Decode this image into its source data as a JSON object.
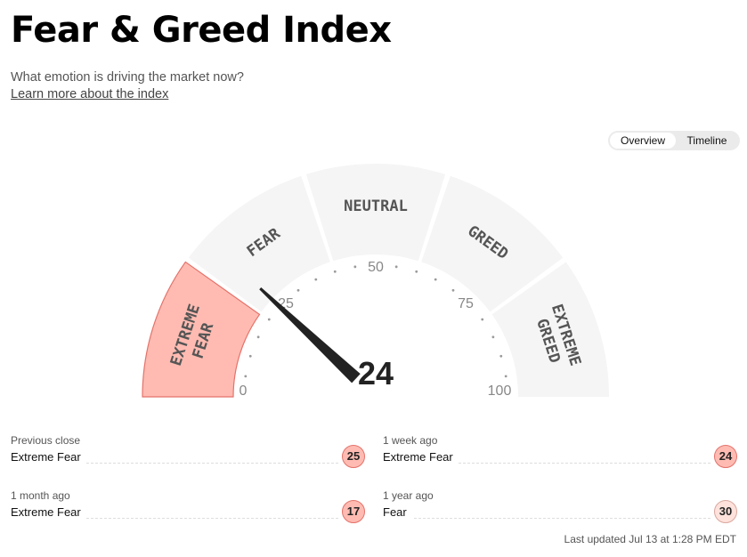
{
  "header": {
    "title": "Fear & Greed Index",
    "subtitle": "What emotion is driving the market now?",
    "learn_link": "Learn more about the index"
  },
  "view_toggle": {
    "options": [
      "Overview",
      "Timeline"
    ],
    "selected": "Overview"
  },
  "gauge": {
    "value": 24,
    "value_label": "24",
    "scale_min": 0,
    "scale_max": 100,
    "ticks": [
      "0",
      "25",
      "50",
      "75",
      "100"
    ],
    "segments": [
      {
        "lines": [
          "EXTREME",
          "FEAR"
        ],
        "active": true
      },
      {
        "lines": [
          "FEAR"
        ],
        "active": false
      },
      {
        "lines": [
          "NEUTRAL"
        ],
        "active": false
      },
      {
        "lines": [
          "GREED"
        ],
        "active": false
      },
      {
        "lines": [
          "EXTREME",
          "GREED"
        ],
        "active": false
      }
    ],
    "colors": {
      "active_fill": "#ffbbb2",
      "active_stroke": "#e4726a",
      "inactive_fill": "#f5f5f5",
      "needle": "#222222"
    }
  },
  "history": [
    {
      "label": "Previous close",
      "value": "Extreme Fear",
      "score": "25"
    },
    {
      "label": "1 week ago",
      "value": "Extreme Fear",
      "score": "24"
    },
    {
      "label": "1 month ago",
      "value": "Extreme Fear",
      "score": "17"
    },
    {
      "label": "1 year ago",
      "value": "Fear",
      "score": "30"
    }
  ],
  "last_updated": "Last updated Jul 13 at 1:28 PM EDT"
}
